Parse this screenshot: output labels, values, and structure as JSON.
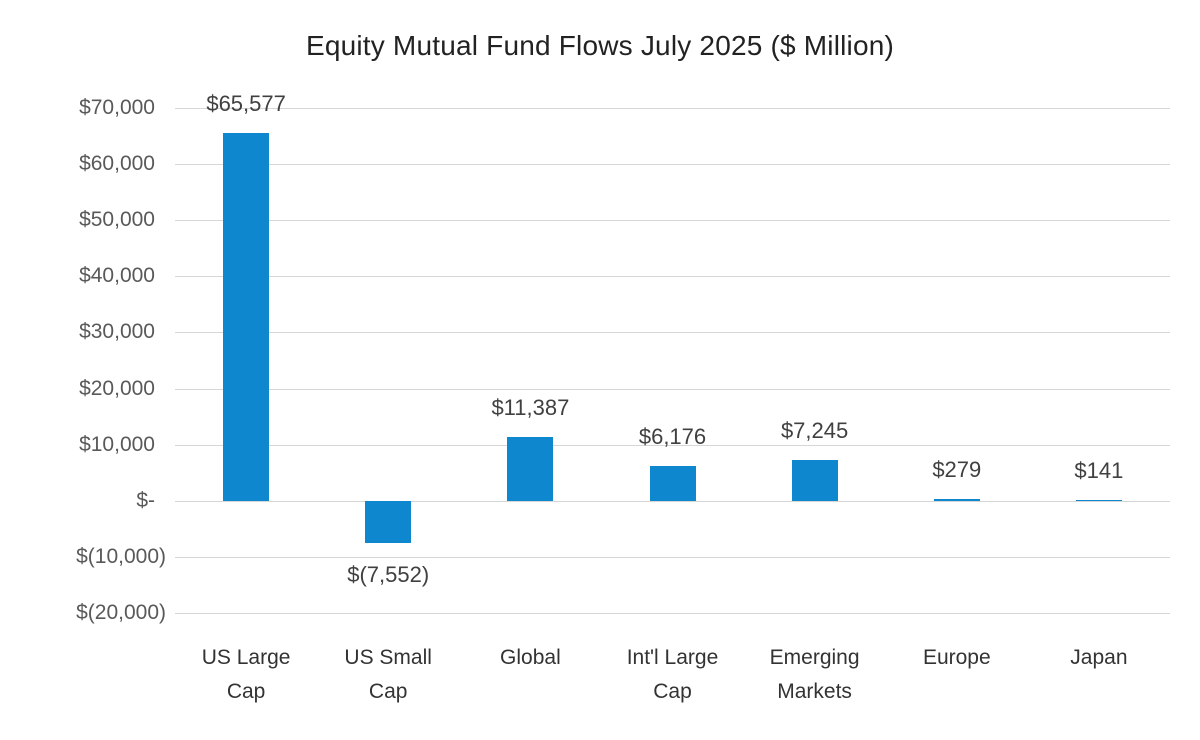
{
  "title": "Equity Mutual Fund Flows July 2025 ($ Million)",
  "chart_data": {
    "type": "bar",
    "title": "Equity Mutual Fund Flows July 2025 ($ Million)",
    "categories": [
      "US Large Cap",
      "US Small Cap",
      "Global",
      "Int'l Large Cap",
      "Emerging Markets",
      "Europe",
      "Japan"
    ],
    "values": [
      65577,
      -7552,
      11387,
      6176,
      7245,
      279,
      141
    ],
    "data_labels": [
      "$65,577",
      "$(7,552)",
      "$11,387",
      "$6,176",
      "$7,245",
      "$279",
      "$141"
    ],
    "xlabel": "",
    "ylabel": "",
    "ylim": [
      -20000,
      70000
    ],
    "ytick_step": 10000,
    "ytick_labels": [
      "$(20,000)",
      "$(10,000)",
      "$-",
      "$10,000",
      "$20,000",
      "$30,000",
      "$40,000",
      "$50,000",
      "$60,000",
      "$70,000"
    ],
    "grid": true,
    "legend": false,
    "bar_color": "#0E87CE"
  },
  "colors": {
    "bar": "#0E87CE",
    "gridline": "#D6D6D6",
    "tick_text": "#595959",
    "category_text": "#333333",
    "data_label_text": "#404040",
    "title_text": "#222222",
    "background": "#FFFFFF"
  }
}
